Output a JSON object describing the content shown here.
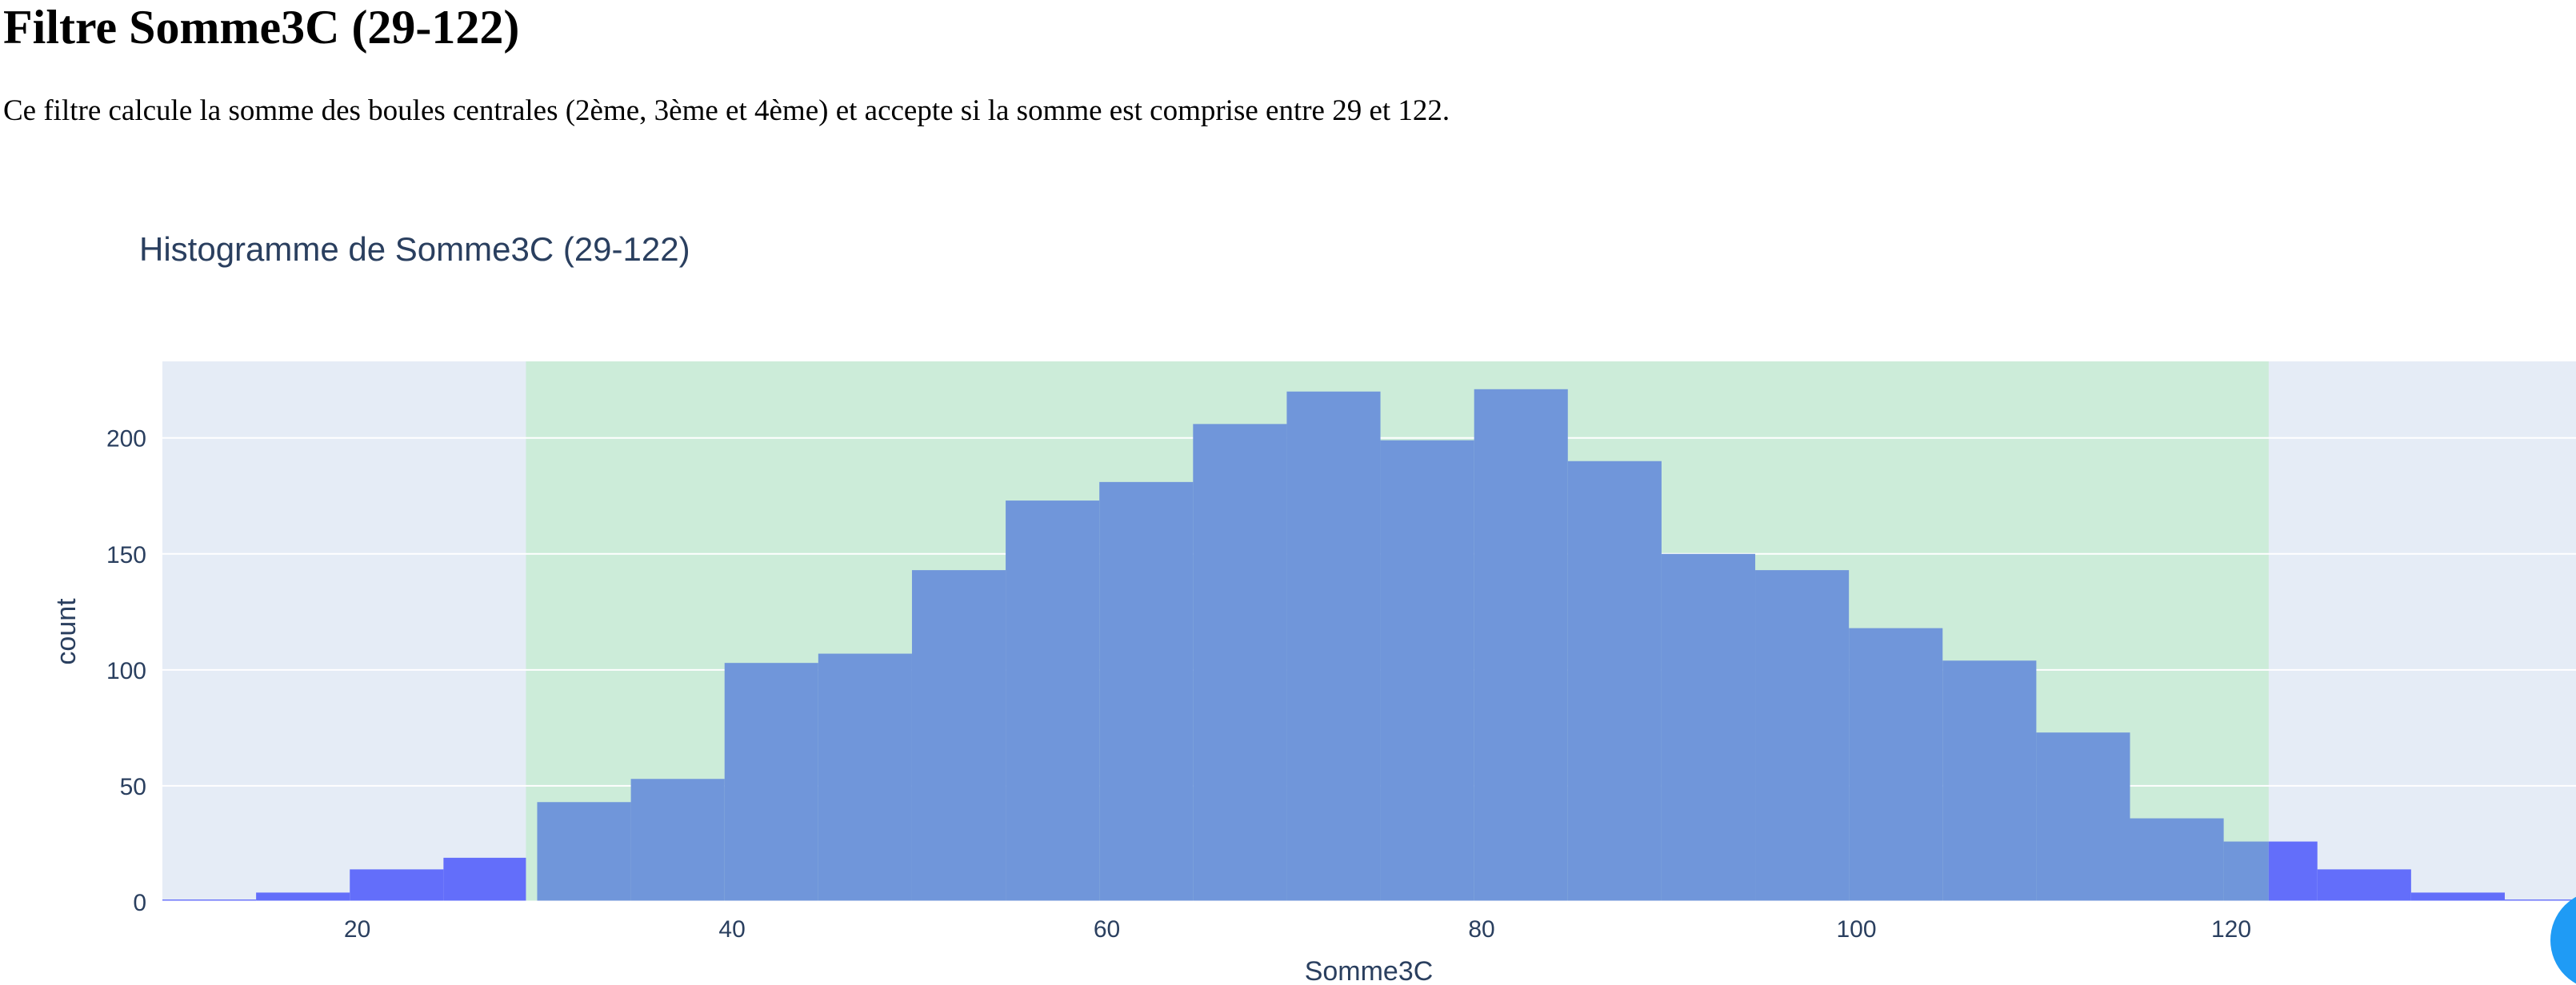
{
  "page": {
    "title": "Filtre Somme3C (29-122)",
    "description": "Ce filtre calcule la somme des boules centrales (2ème, 3ème et 4ème) et accepte si la somme est comprise entre 29 et 122."
  },
  "colors": {
    "plot_background": "#e5ecf6",
    "accepted_band": "#ccecd9",
    "bar_outside": "#636efa",
    "bar_inside": "#7096da",
    "gridline": "#ffffff",
    "text": "#2a3f5f",
    "modebar_button": "#1f9bf5"
  },
  "chart_data": {
    "type": "bar",
    "title": "Histogramme de Somme3C (29-122)",
    "xlabel": "Somme3C",
    "ylabel": "count",
    "xlim": [
      9.6,
      138.4
    ],
    "ylim": [
      0,
      233
    ],
    "xticks": [
      "20",
      "40",
      "60",
      "80",
      "100",
      "120"
    ],
    "yticks": [
      "0",
      "50",
      "100",
      "150",
      "200"
    ],
    "grid": true,
    "legend": "none",
    "accepted_range": [
      29,
      122
    ],
    "series": [
      {
        "bins": [
          {
            "x0": 9.6,
            "x1": 14.6,
            "count": 1,
            "accepted": false
          },
          {
            "x0": 14.6,
            "x1": 19.6,
            "count": 4,
            "accepted": false
          },
          {
            "x0": 19.6,
            "x1": 24.6,
            "count": 14,
            "accepted": false
          },
          {
            "x0": 24.6,
            "x1": 29.0,
            "count": 19,
            "accepted": false
          },
          {
            "x0": 29.6,
            "x1": 34.6,
            "count": 43,
            "accepted": true
          },
          {
            "x0": 34.6,
            "x1": 39.6,
            "count": 53,
            "accepted": true
          },
          {
            "x0": 39.6,
            "x1": 44.6,
            "count": 103,
            "accepted": true
          },
          {
            "x0": 44.6,
            "x1": 49.6,
            "count": 107,
            "accepted": true
          },
          {
            "x0": 49.6,
            "x1": 54.6,
            "count": 143,
            "accepted": true
          },
          {
            "x0": 54.6,
            "x1": 59.6,
            "count": 173,
            "accepted": true
          },
          {
            "x0": 59.6,
            "x1": 64.6,
            "count": 181,
            "accepted": true
          },
          {
            "x0": 64.6,
            "x1": 69.6,
            "count": 206,
            "accepted": true
          },
          {
            "x0": 69.6,
            "x1": 74.6,
            "count": 220,
            "accepted": true
          },
          {
            "x0": 74.6,
            "x1": 79.6,
            "count": 199,
            "accepted": true
          },
          {
            "x0": 79.6,
            "x1": 84.6,
            "count": 221,
            "accepted": true
          },
          {
            "x0": 84.6,
            "x1": 89.6,
            "count": 190,
            "accepted": true
          },
          {
            "x0": 89.6,
            "x1": 94.6,
            "count": 150,
            "accepted": true
          },
          {
            "x0": 94.6,
            "x1": 99.6,
            "count": 143,
            "accepted": true
          },
          {
            "x0": 99.6,
            "x1": 104.6,
            "count": 118,
            "accepted": true
          },
          {
            "x0": 104.6,
            "x1": 109.6,
            "count": 104,
            "accepted": true
          },
          {
            "x0": 109.6,
            "x1": 114.6,
            "count": 73,
            "accepted": true
          },
          {
            "x0": 114.6,
            "x1": 119.6,
            "count": 36,
            "accepted": true
          },
          {
            "x0": 119.6,
            "x1": 122.0,
            "count": 26,
            "accepted": true
          },
          {
            "x0": 122.0,
            "x1": 124.6,
            "count": 26,
            "accepted": false
          },
          {
            "x0": 124.6,
            "x1": 129.6,
            "count": 14,
            "accepted": false
          },
          {
            "x0": 129.6,
            "x1": 134.6,
            "count": 4,
            "accepted": false
          },
          {
            "x0": 134.6,
            "x1": 138.4,
            "count": 1,
            "accepted": false
          }
        ]
      }
    ]
  }
}
